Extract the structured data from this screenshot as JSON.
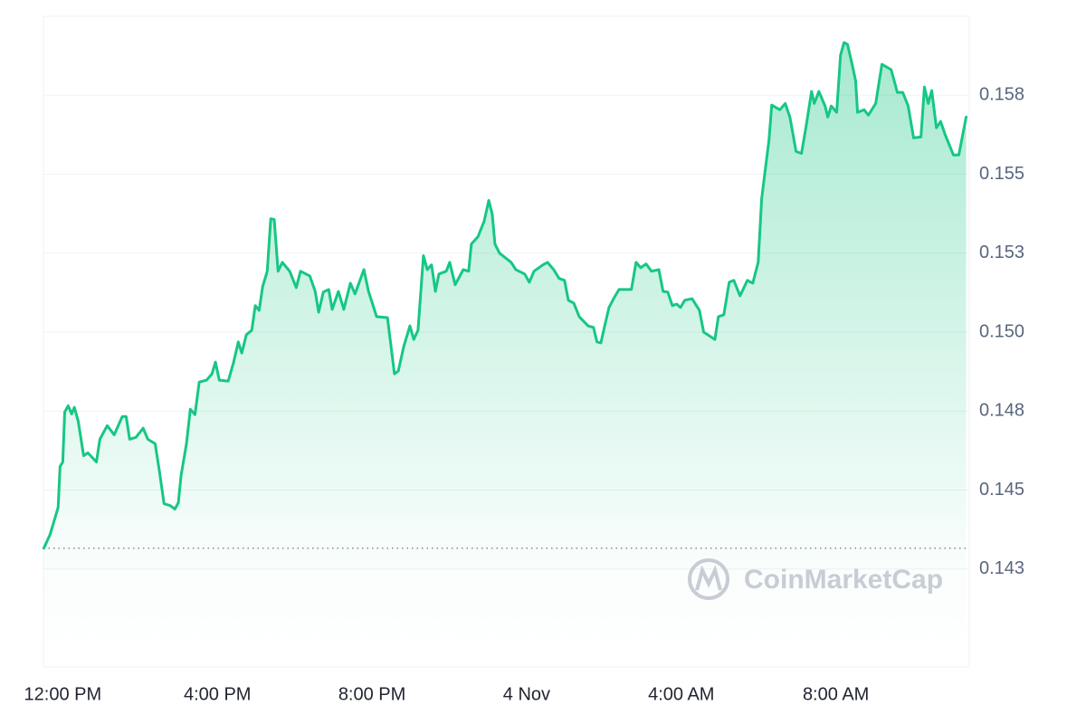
{
  "chart_data": {
    "type": "line",
    "color": "#16c784",
    "grid": true,
    "watermark": "CoinMarketCap",
    "xlim": [
      -0.5,
      23.45
    ],
    "ylim": [
      0.1394,
      0.16
    ],
    "xticks": [
      {
        "value": 0,
        "label": "12:00 PM"
      },
      {
        "value": 4,
        "label": "4:00 PM"
      },
      {
        "value": 8,
        "label": "8:00 PM"
      },
      {
        "value": 12,
        "label": "4 Nov"
      },
      {
        "value": 16,
        "label": "4:00 AM"
      },
      {
        "value": 20,
        "label": "8:00 AM"
      }
    ],
    "yticks": [
      {
        "value": 0.1425,
        "label": "0.143"
      },
      0.145,
      {
        "value": 0.1475,
        "label": "0.148"
      },
      {
        "value": 0.15,
        "label": "0.150"
      },
      {
        "value": 0.1525,
        "label": "0.153"
      },
      0.155,
      {
        "value": 0.1575,
        "label": "0.158"
      }
    ],
    "x": [
      -0.49,
      -0.33,
      -0.12,
      -0.07,
      0,
      0.05,
      0.14,
      0.23,
      0.3,
      0.4,
      0.54,
      0.65,
      0.87,
      0.96,
      1.15,
      1.33,
      1.54,
      1.64,
      1.73,
      1.89,
      2.08,
      2.2,
      2.39,
      2.5,
      2.62,
      2.78,
      2.9,
      2.99,
      3.06,
      3.2,
      3.3,
      3.42,
      3.53,
      3.72,
      3.86,
      3.95,
      4.05,
      4.28,
      4.42,
      4.54,
      4.63,
      4.75,
      4.89,
      4.98,
      5.08,
      5.17,
      5.29,
      5.38,
      5.47,
      5.57,
      5.68,
      5.87,
      6.04,
      6.15,
      6.39,
      6.53,
      6.62,
      6.74,
      6.88,
      6.97,
      7.13,
      7.27,
      7.44,
      7.56,
      7.79,
      7.91,
      8.12,
      8.4,
      8.58,
      8.68,
      8.82,
      8.98,
      9.08,
      9.19,
      9.33,
      9.43,
      9.54,
      9.64,
      9.73,
      9.92,
      10.01,
      10.15,
      10.36,
      10.5,
      10.57,
      10.74,
      10.9,
      11.02,
      11.11,
      11.18,
      11.3,
      11.6,
      11.72,
      11.95,
      12.07,
      12.19,
      12.42,
      12.54,
      12.7,
      12.84,
      12.98,
      13.08,
      13.22,
      13.36,
      13.59,
      13.73,
      13.82,
      13.92,
      14.01,
      14.13,
      14.25,
      14.39,
      14.71,
      14.83,
      14.95,
      15.09,
      15.23,
      15.42,
      15.53,
      15.65,
      15.77,
      15.88,
      15.98,
      16.09,
      16.28,
      16.47,
      16.58,
      16.87,
      16.96,
      17.1,
      17.24,
      17.36,
      17.52,
      17.71,
      17.85,
      17.99,
      18.08,
      18.27,
      18.34,
      18.55,
      18.69,
      18.81,
      18.97,
      19.11,
      19.23,
      19.37,
      19.44,
      19.56,
      19.72,
      19.79,
      19.88,
      20.02,
      20.12,
      20.21,
      20.3,
      20.42,
      20.51,
      20.56,
      20.73,
      20.84,
      21.03,
      21.19,
      21.43,
      21.59,
      21.73,
      21.87,
      22.01,
      22.2,
      22.29,
      22.39,
      22.48,
      22.6,
      22.71,
      22.83,
      23.04,
      23.18,
      23.37
    ],
    "values": [
      0.14316,
      0.14359,
      0.14445,
      0.14575,
      0.14589,
      0.14747,
      0.14767,
      0.14741,
      0.14762,
      0.14718,
      0.14609,
      0.14618,
      0.14589,
      0.14661,
      0.14704,
      0.14675,
      0.14733,
      0.14733,
      0.14661,
      0.14667,
      0.14696,
      0.14661,
      0.14647,
      0.1456,
      0.14457,
      0.14451,
      0.1444,
      0.1446,
      0.14546,
      0.14647,
      0.14756,
      0.14739,
      0.14842,
      0.14848,
      0.14868,
      0.14905,
      0.14848,
      0.14845,
      0.14905,
      0.14969,
      0.14934,
      0.14992,
      0.15006,
      0.15084,
      0.15069,
      0.15144,
      0.15193,
      0.15359,
      0.15357,
      0.15193,
      0.15221,
      0.15193,
      0.15141,
      0.15193,
      0.15178,
      0.15129,
      0.15063,
      0.15127,
      0.15135,
      0.15072,
      0.15129,
      0.15072,
      0.15155,
      0.15121,
      0.15198,
      0.15129,
      0.15049,
      0.15046,
      0.14868,
      0.14877,
      0.14954,
      0.1502,
      0.14977,
      0.15006,
      0.15242,
      0.15198,
      0.15213,
      0.15129,
      0.15184,
      0.15193,
      0.15221,
      0.1515,
      0.15198,
      0.15193,
      0.15279,
      0.15302,
      0.15351,
      0.15417,
      0.15374,
      0.15279,
      0.1525,
      0.15221,
      0.15198,
      0.15184,
      0.15158,
      0.15193,
      0.15213,
      0.15221,
      0.15198,
      0.1517,
      0.15164,
      0.15101,
      0.15092,
      0.15049,
      0.1502,
      0.15015,
      0.14969,
      0.14966,
      0.15015,
      0.15078,
      0.15106,
      0.15135,
      0.15135,
      0.15221,
      0.15204,
      0.15216,
      0.15193,
      0.15198,
      0.15129,
      0.15127,
      0.15084,
      0.15089,
      0.15078,
      0.15101,
      0.15106,
      0.15069,
      0.15,
      0.14977,
      0.15049,
      0.15055,
      0.15158,
      0.15164,
      0.15115,
      0.15164,
      0.15155,
      0.15221,
      0.15423,
      0.15609,
      0.15719,
      0.15704,
      0.15724,
      0.15681,
      0.15572,
      0.15566,
      0.15652,
      0.15762,
      0.15724,
      0.15762,
      0.15716,
      0.15681,
      0.15716,
      0.15696,
      0.15877,
      0.15917,
      0.15911,
      0.15848,
      0.15796,
      0.15696,
      0.15704,
      0.15687,
      0.15724,
      0.15848,
      0.15831,
      0.15759,
      0.15759,
      0.15716,
      0.15615,
      0.15618,
      0.15776,
      0.15724,
      0.15765,
      0.15647,
      0.15667,
      0.15624,
      0.15561,
      0.15561,
      0.15681
    ]
  }
}
